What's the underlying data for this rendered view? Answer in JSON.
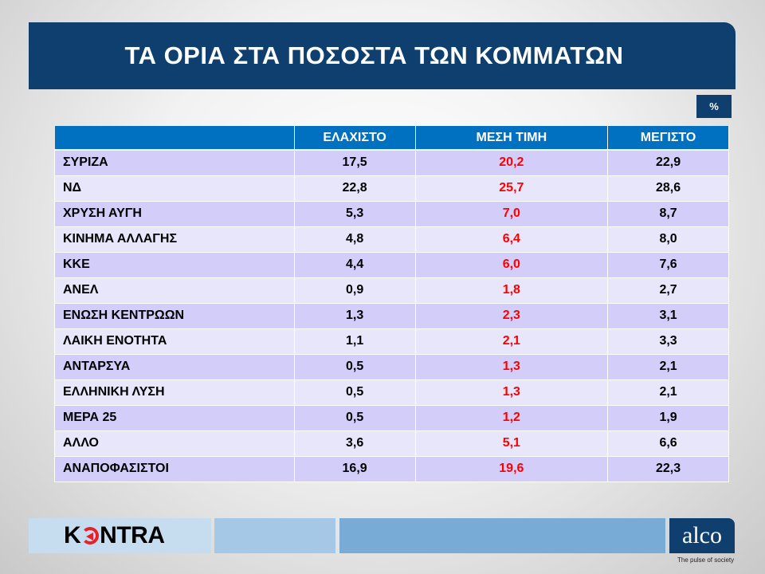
{
  "title": "ΤΑ ΟΡΙΑ ΣΤΑ ΠΟΣΟΣΤΑ ΤΩΝ ΚΟΜΜΑΤΩΝ",
  "unit": "%",
  "columns": [
    "",
    "ΕΛΑΧΙΣΤΟ",
    "ΜΕΣΗ ΤΙΜΗ",
    "ΜΕΓΙΣΤΟ"
  ],
  "rows": [
    [
      "ΣΥΡΙΖΑ",
      "17,5",
      "20,2",
      "22,9"
    ],
    [
      "ΝΔ",
      "22,8",
      "25,7",
      "28,6"
    ],
    [
      "ΧΡΥΣΗ ΑΥΓΗ",
      "5,3",
      "7,0",
      "8,7"
    ],
    [
      "ΚΙΝΗΜΑ ΑΛΛΑΓΗΣ",
      "4,8",
      "6,4",
      "8,0"
    ],
    [
      "ΚΚΕ",
      "4,4",
      "6,0",
      "7,6"
    ],
    [
      "ΑΝΕΛ",
      "0,9",
      "1,8",
      "2,7"
    ],
    [
      "ΕΝΩΣΗ ΚΕΝΤΡΩΩΝ",
      "1,3",
      "2,3",
      "3,1"
    ],
    [
      "ΛΑΙΚΗ ΕΝΟΤΗΤΑ",
      "1,1",
      "2,1",
      "3,3"
    ],
    [
      "ΑΝΤΑΡΣΥΑ",
      "0,5",
      "1,3",
      "2,1"
    ],
    [
      "ΕΛΛΗΝΙΚΗ ΛΥΣΗ",
      "0,5",
      "1,3",
      "2,1"
    ],
    [
      "ΜΕΡΑ 25",
      "0,5",
      "1,2",
      "1,9"
    ],
    [
      "ΑΛΛΟ",
      "3,6",
      "5,1",
      "6,6"
    ],
    [
      "ΑΝΑΠΟΦΑΣΙΣΤΟΙ",
      "16,9",
      "19,6",
      "22,3"
    ]
  ],
  "footer": {
    "kontra_pre": "K",
    "kontra_post": "NTRA",
    "alco": "alco",
    "tagline": "The pulse of society"
  },
  "colors": {
    "header": "#0e3f6e",
    "table_header": "#0070c0",
    "mid_value": "#ff0000",
    "row_odd": "#d2cdf9",
    "row_even": "#e8e6fb"
  }
}
